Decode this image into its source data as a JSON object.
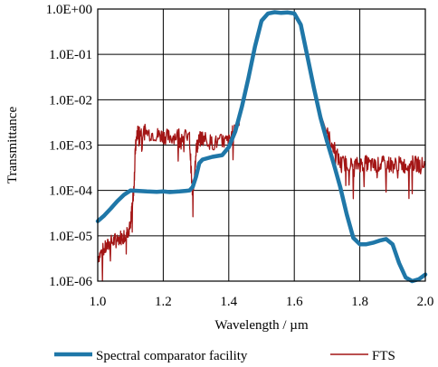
{
  "chart_data": {
    "type": "line",
    "xlabel": "Wavelength / µm",
    "ylabel": "Transmittance",
    "xlim": [
      1.0,
      2.0
    ],
    "ylim": [
      1e-06,
      1.0
    ],
    "y_scale": "log",
    "x_ticks": [
      1.0,
      1.2,
      1.4,
      1.6,
      1.8,
      2.0
    ],
    "x_tick_labels": [
      "1.0",
      "1.2",
      "1.4",
      "1.6",
      "1.8",
      "2.0"
    ],
    "y_ticks": [
      1.0,
      0.1,
      0.01,
      0.001,
      0.0001,
      1e-05,
      1e-06
    ],
    "y_tick_labels": [
      "1.0E+00",
      "1.0E-01",
      "1.0E-02",
      "1.0E-03",
      "1.0E-04",
      "1.0E-05",
      "1.0E-06"
    ],
    "grid": true,
    "legend_position": "bottom",
    "series": [
      {
        "name": "Spectral comparator facility",
        "color": "#1f77a8",
        "x": [
          1.0,
          1.02,
          1.04,
          1.06,
          1.08,
          1.1,
          1.12,
          1.15,
          1.18,
          1.2,
          1.22,
          1.25,
          1.27,
          1.28,
          1.29,
          1.3,
          1.31,
          1.32,
          1.35,
          1.38,
          1.4,
          1.42,
          1.44,
          1.46,
          1.48,
          1.5,
          1.52,
          1.54,
          1.56,
          1.58,
          1.6,
          1.62,
          1.64,
          1.66,
          1.68,
          1.7,
          1.72,
          1.74,
          1.76,
          1.78,
          1.8,
          1.82,
          1.84,
          1.86,
          1.88,
          1.9,
          1.92,
          1.94,
          1.96,
          1.98,
          2.0
        ],
        "y": [
          2.1e-05,
          2.8e-05,
          4e-05,
          5.8e-05,
          8e-05,
          0.0001,
          9.8e-05,
          9.5e-05,
          9.3e-05,
          9.5e-05,
          9.2e-05,
          9.5e-05,
          9.8e-05,
          0.0001,
          0.00012,
          0.0002,
          0.0004,
          0.00048,
          0.00055,
          0.0006,
          0.0009,
          0.002,
          0.007,
          0.03,
          0.15,
          0.55,
          0.8,
          0.85,
          0.82,
          0.84,
          0.8,
          0.45,
          0.09,
          0.018,
          0.004,
          0.0012,
          0.0004,
          0.00012,
          3e-05,
          9e-06,
          6.5e-06,
          6.5e-06,
          7e-06,
          7.8e-06,
          8.5e-06,
          6.5e-06,
          2.5e-06,
          1.2e-06,
          9e-07,
          1.1e-06,
          1.4e-06
        ]
      },
      {
        "name": "FTS",
        "color": "#a31515",
        "x": [
          1.0,
          1.02,
          1.04,
          1.06,
          1.08,
          1.09,
          1.1,
          1.105,
          1.11,
          1.115,
          1.12,
          1.13,
          1.15,
          1.18,
          1.2,
          1.22,
          1.25,
          1.28,
          1.29,
          1.3,
          1.31,
          1.32,
          1.35,
          1.38,
          1.4,
          1.42,
          1.44,
          1.46,
          1.48,
          1.5,
          1.52,
          1.54,
          1.56,
          1.58,
          1.6,
          1.62,
          1.64,
          1.66,
          1.68,
          1.7,
          1.72,
          1.74,
          1.76,
          1.78,
          1.8,
          1.82,
          1.84,
          1.86,
          1.88,
          1.9,
          1.92,
          1.94,
          1.96,
          1.98,
          2.0
        ],
        "y": [
          3.5e-06,
          5e-06,
          7e-06,
          8.5e-06,
          1e-05,
          1.3e-05,
          1.5e-05,
          5e-05,
          0.0001,
          0.0008,
          0.0018,
          0.002,
          0.0019,
          0.0017,
          0.0016,
          0.0015,
          0.0017,
          0.0014,
          6e-05,
          0.0008,
          0.0013,
          0.0015,
          0.0011,
          0.0012,
          0.0012,
          0.0025,
          0.008,
          0.035,
          0.16,
          0.6,
          0.82,
          0.86,
          0.83,
          0.85,
          0.8,
          0.4,
          0.09,
          0.02,
          0.005,
          0.0018,
          0.0009,
          0.0004,
          0.0004,
          0.00035,
          0.00038,
          0.0004,
          0.00035,
          0.00037,
          0.0004,
          0.00036,
          0.00038,
          0.00035,
          0.0004,
          0.00037,
          0.00038
        ]
      }
    ]
  }
}
